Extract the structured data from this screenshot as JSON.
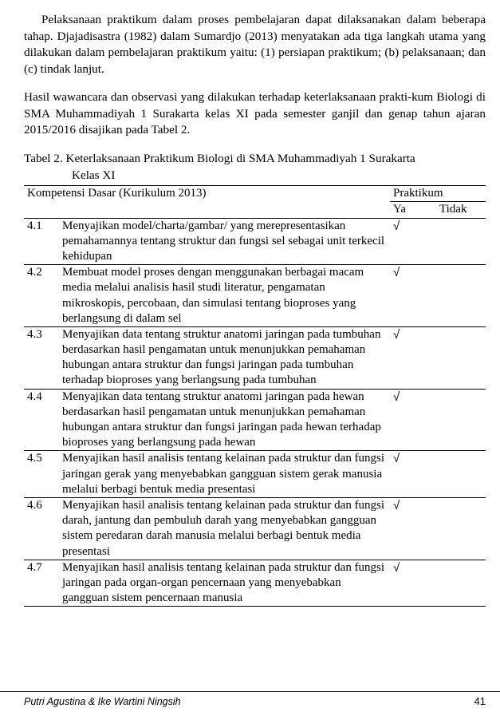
{
  "paragraphs": {
    "p1": "Pelaksanaan praktikum dalam proses pembelajaran dapat dilaksanakan dalam beberapa tahap. Djajadisastra (1982) dalam Sumardjo (2013) menyatakan ada tiga langkah utama yang dilakukan dalam pembelajaran praktikum yaitu: (1) persiapan praktikum; (b) pelaksanaan; dan (c) tindak lanjut.",
    "p2": "Hasil wawancara dan observasi yang dilakukan terhadap keterlaksanaan prakti-kum Biologi di SMA Muhammadiyah 1 Surakarta kelas XI pada semester ganjil dan genap tahun ajaran 2015/2016 disajikan pada Tabel 2."
  },
  "tableCaption": {
    "line1": "Tabel 2. Keterlaksanaan Praktikum Biologi di SMA Muhammadiyah 1 Surakarta",
    "line2": "Kelas XI"
  },
  "tableHeader": {
    "kd": "Kompetensi Dasar (Kurikulum 2013)",
    "praktikum": "Praktikum",
    "ya": "Ya",
    "tidak": "Tidak"
  },
  "checkMark": "√",
  "rows": [
    {
      "num": "4.1",
      "desc": "Menyajikan model/charta/gambar/ yang merepresentasikan pemahamannya tentang struktur dan fungsi sel sebagai unit terkecil kehidupan",
      "ya": true,
      "tidak": false
    },
    {
      "num": "4.2",
      "desc": "Membuat model proses dengan menggunakan berbagai macam media melalui analisis hasil studi literatur, pengamatan mikroskopis, percobaan, dan simulasi tentang bioproses yang berlangsung di dalam sel",
      "ya": true,
      "tidak": false
    },
    {
      "num": "4.3",
      "desc": "Menyajikan data tentang struktur anatomi jaringan pada tumbuhan berdasarkan hasil pengamatan untuk menunjukkan pemahaman hubungan antara struktur dan fungsi jaringan pada tumbuhan terhadap bioproses yang berlangsung pada tumbuhan",
      "ya": true,
      "tidak": false
    },
    {
      "num": "4.4",
      "desc": "Menyajikan data tentang struktur anatomi jaringan pada hewan berdasarkan hasil pengamatan untuk menunjukkan pemahaman hubungan antara struktur dan fungsi jaringan pada hewan terhadap bioproses yang berlangsung pada hewan",
      "ya": true,
      "tidak": false
    },
    {
      "num": "4.5",
      "desc": "Menyajikan hasil analisis tentang kelainan pada struktur dan fungsi jaringan gerak yang menyebabkan gangguan sistem gerak manusia melalui berbagi bentuk media presentasi",
      "ya": true,
      "tidak": false
    },
    {
      "num": "4.6",
      "desc": "Menyajikan hasil analisis tentang kelainan pada struktur dan fungsi darah, jantung dan pembuluh darah yang menyebabkan gangguan sistem peredaran darah manusia melalui berbagi bentuk media presentasi",
      "ya": true,
      "tidak": false
    },
    {
      "num": "4.7",
      "desc": "Menyajikan hasil analisis tentang kelainan pada struktur dan fungsi jaringan pada organ-organ pencernaan yang menyebabkan gangguan sistem pencernaan manusia",
      "ya": true,
      "tidak": false
    }
  ],
  "footer": {
    "authors": "Putri Agustina & Ike Wartini Ningsih",
    "pageNumber": "41"
  },
  "colors": {
    "text": "#000000",
    "background": "#ffffff",
    "border": "#000000"
  }
}
